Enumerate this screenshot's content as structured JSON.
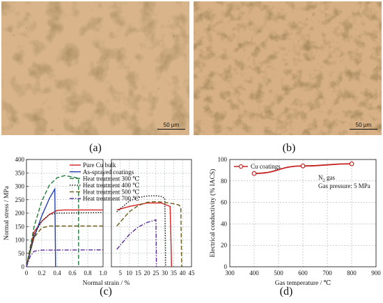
{
  "figure": {
    "panels": {
      "a": {
        "label": "(a)",
        "scale_bar": "50 μm"
      },
      "b": {
        "label": "(b)",
        "scale_bar": "50 μm"
      },
      "c": {
        "label": "(c)"
      },
      "d": {
        "label": "(d)"
      }
    }
  },
  "chart_data": [
    {
      "type": "line",
      "panel": "c",
      "ylabel": "Normal stress / MPa",
      "xlabel": "Normal strain / %",
      "ylim": [
        0,
        400
      ],
      "yticks": [
        0,
        50,
        100,
        150,
        200,
        250,
        300,
        350,
        400
      ],
      "x_axis_break": true,
      "xticks_left": [
        "0",
        "0.2",
        "0.4",
        "0.6",
        "0.8",
        "1.0"
      ],
      "xticks_right": [
        "5",
        "10",
        "15",
        "20",
        "25",
        "30",
        "35",
        "40",
        "45"
      ],
      "grid": true,
      "legend_position": "top-left",
      "series": [
        {
          "name": "Pure Cu bulk",
          "color": "#d42020",
          "dash": "solid",
          "left": [
            [
              0,
              0
            ],
            [
              0.1,
              130
            ],
            [
              0.2,
              170
            ],
            [
              0.3,
              195
            ],
            [
              0.4,
              210
            ],
            [
              0.5,
              212
            ],
            [
              1.0,
              212
            ]
          ],
          "right": [
            [
              3,
              212
            ],
            [
              10,
              225
            ],
            [
              20,
              238
            ],
            [
              28,
              238
            ],
            [
              33,
              225
            ],
            [
              33.8,
              0
            ]
          ]
        },
        {
          "name": "As-sprayed coatings",
          "color": "#1f3fb0",
          "dash": "solid",
          "left": [
            [
              0,
              0
            ],
            [
              0.05,
              60
            ],
            [
              0.1,
              110
            ],
            [
              0.2,
              190
            ],
            [
              0.3,
              255
            ],
            [
              0.37,
              290
            ],
            [
              0.38,
              0
            ]
          ],
          "right": []
        },
        {
          "name": "Heat treatment 300 ℃",
          "color": "#1f7a3a",
          "dash": "dashed",
          "left": [
            [
              0,
              0
            ],
            [
              0.1,
              150
            ],
            [
              0.2,
              245
            ],
            [
              0.3,
              305
            ],
            [
              0.4,
              332
            ],
            [
              0.5,
              340
            ],
            [
              0.6,
              335
            ],
            [
              0.68,
              330
            ],
            [
              0.68,
              0
            ]
          ],
          "right": []
        },
        {
          "name": "Heat treatment 400 ℃",
          "color": "#111111",
          "dash": "dotted",
          "left": [
            [
              0,
              0
            ],
            [
              0.1,
              120
            ],
            [
              0.2,
              170
            ],
            [
              0.3,
              195
            ],
            [
              0.4,
              200
            ],
            [
              1.0,
              202
            ]
          ],
          "right": [
            [
              3,
              205
            ],
            [
              10,
              245
            ],
            [
              15,
              258
            ],
            [
              20,
              264
            ],
            [
              25,
              265
            ],
            [
              28,
              262
            ],
            [
              30,
              255
            ],
            [
              30.5,
              0
            ]
          ]
        },
        {
          "name": "Heat treatment 500 ℃",
          "color": "#6b5a14",
          "dash": "dashed",
          "left": [
            [
              0,
              0
            ],
            [
              0.1,
              110
            ],
            [
              0.2,
              145
            ],
            [
              0.3,
              152
            ],
            [
              1.0,
              152
            ]
          ],
          "right": [
            [
              3,
              152
            ],
            [
              10,
              205
            ],
            [
              15,
              228
            ],
            [
              20,
              240
            ],
            [
              25,
              243
            ],
            [
              30,
              240
            ],
            [
              35,
              235
            ],
            [
              38,
              230
            ],
            [
              39,
              222
            ],
            [
              39.5,
              0
            ]
          ]
        },
        {
          "name": "Heat treatment 700 ℃",
          "color": "#5a2d9c",
          "dash": "dashdot",
          "left": [
            [
              0,
              0
            ],
            [
              0.05,
              40
            ],
            [
              0.1,
              58
            ],
            [
              0.2,
              62
            ],
            [
              1.0,
              63
            ]
          ],
          "right": [
            [
              3,
              65
            ],
            [
              10,
              120
            ],
            [
              15,
              148
            ],
            [
              20,
              165
            ],
            [
              25,
              175
            ],
            [
              25.3,
              0
            ]
          ]
        }
      ]
    },
    {
      "type": "line",
      "panel": "d",
      "ylabel": "Electrical conductivity (% IACS)",
      "xlabel": "Gas temperature / ℃",
      "xlim": [
        300,
        900
      ],
      "ylim": [
        0,
        100
      ],
      "xticks": [
        300,
        400,
        500,
        600,
        700,
        800,
        900
      ],
      "yticks": [
        0,
        20,
        40,
        60,
        80,
        100
      ],
      "grid": true,
      "legend_position": "top-left",
      "annotations": [
        "N2 gas",
        "Gas pressure: 5 MPa"
      ],
      "series": [
        {
          "name": "Cu coatings",
          "color": "#c42020",
          "marker": "open-circle",
          "x": [
            400,
            600,
            800
          ],
          "y": [
            87,
            94,
            96
          ]
        }
      ]
    }
  ]
}
